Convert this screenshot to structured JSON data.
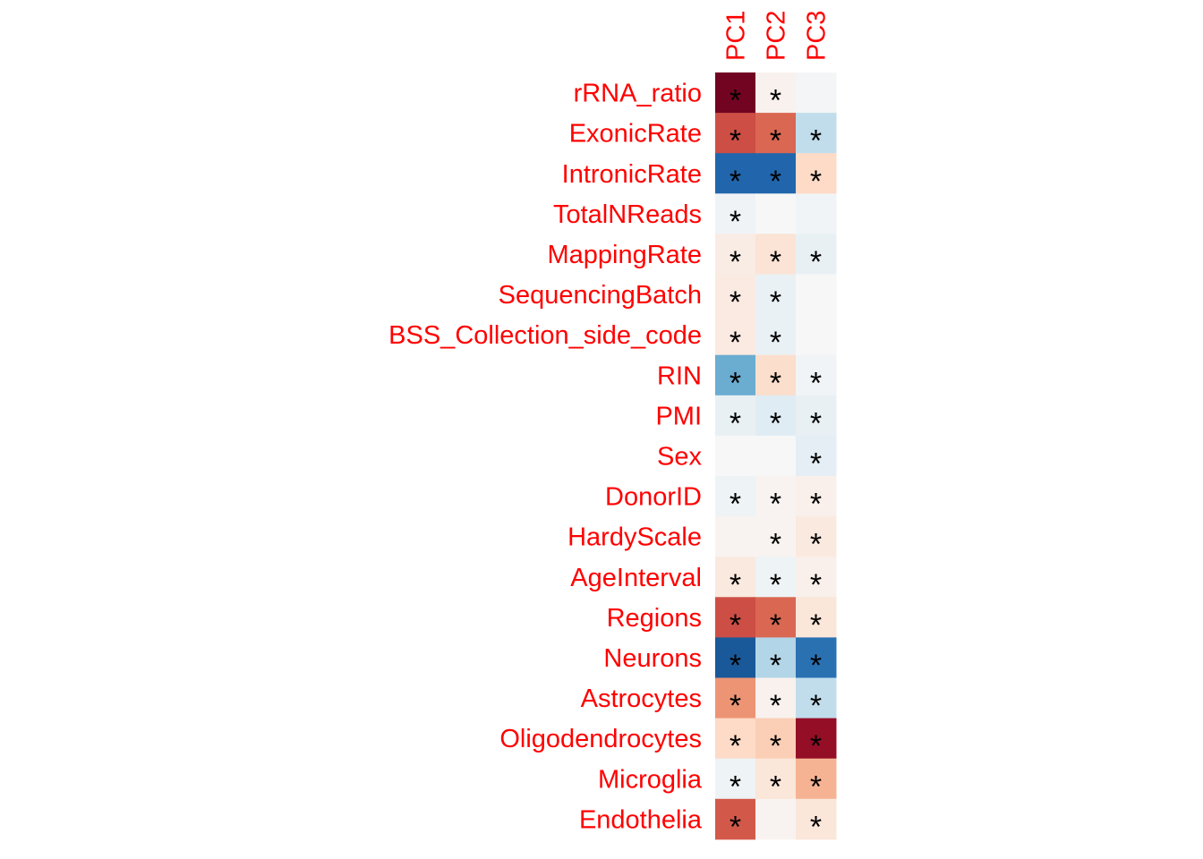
{
  "chart_data": {
    "type": "heatmap",
    "columns": [
      "PC1",
      "PC2",
      "PC3"
    ],
    "rows": [
      "rRNA_ratio",
      "ExonicRate",
      "IntronicRate",
      "TotalNReads",
      "MappingRate",
      "SequencingBatch",
      "BSS_Collection_side_code",
      "RIN",
      "PMI",
      "Sex",
      "DonorID",
      "HardyScale",
      "AgeInterval",
      "Regions",
      "Neurons",
      "Astrocytes",
      "Oligodendrocytes",
      "Microglia",
      "Endothelia"
    ],
    "values": [
      [
        0.97,
        0.04,
        -0.02
      ],
      [
        0.65,
        0.58,
        -0.25
      ],
      [
        -0.8,
        -0.8,
        0.2
      ],
      [
        -0.04,
        0.0,
        -0.03
      ],
      [
        0.08,
        0.14,
        -0.08
      ],
      [
        0.09,
        -0.07,
        0.0
      ],
      [
        0.09,
        -0.07,
        0.0
      ],
      [
        -0.5,
        0.18,
        -0.03
      ],
      [
        -0.08,
        -0.12,
        -0.08
      ],
      [
        0.0,
        0.0,
        -0.1
      ],
      [
        -0.05,
        0.03,
        0.05
      ],
      [
        0.03,
        0.03,
        0.1
      ],
      [
        0.1,
        -0.05,
        0.05
      ],
      [
        0.65,
        0.58,
        0.12
      ],
      [
        -0.85,
        -0.3,
        -0.75
      ],
      [
        0.45,
        0.04,
        -0.25
      ],
      [
        0.2,
        0.25,
        0.88
      ],
      [
        -0.05,
        0.12,
        0.35
      ],
      [
        0.62,
        0.03,
        0.12
      ]
    ],
    "significance_symbol": "*",
    "significant": [
      [
        true,
        true,
        false
      ],
      [
        true,
        true,
        true
      ],
      [
        true,
        true,
        true
      ],
      [
        true,
        false,
        false
      ],
      [
        true,
        true,
        true
      ],
      [
        true,
        true,
        false
      ],
      [
        true,
        true,
        false
      ],
      [
        true,
        true,
        true
      ],
      [
        true,
        true,
        true
      ],
      [
        false,
        false,
        true
      ],
      [
        true,
        true,
        true
      ],
      [
        false,
        true,
        true
      ],
      [
        true,
        true,
        true
      ],
      [
        true,
        true,
        true
      ],
      [
        true,
        true,
        true
      ],
      [
        true,
        true,
        true
      ],
      [
        true,
        true,
        true
      ],
      [
        true,
        true,
        true
      ],
      [
        true,
        false,
        true
      ]
    ],
    "color_scale": {
      "range": [
        -1,
        1
      ],
      "stops": [
        "#053061",
        "#2166ac",
        "#4393c3",
        "#92c5de",
        "#d1e5f0",
        "#f7f7f7",
        "#fddbc7",
        "#f4a582",
        "#d6604d",
        "#b2182b",
        "#67001f"
      ]
    },
    "label_color": "#ff0000"
  }
}
